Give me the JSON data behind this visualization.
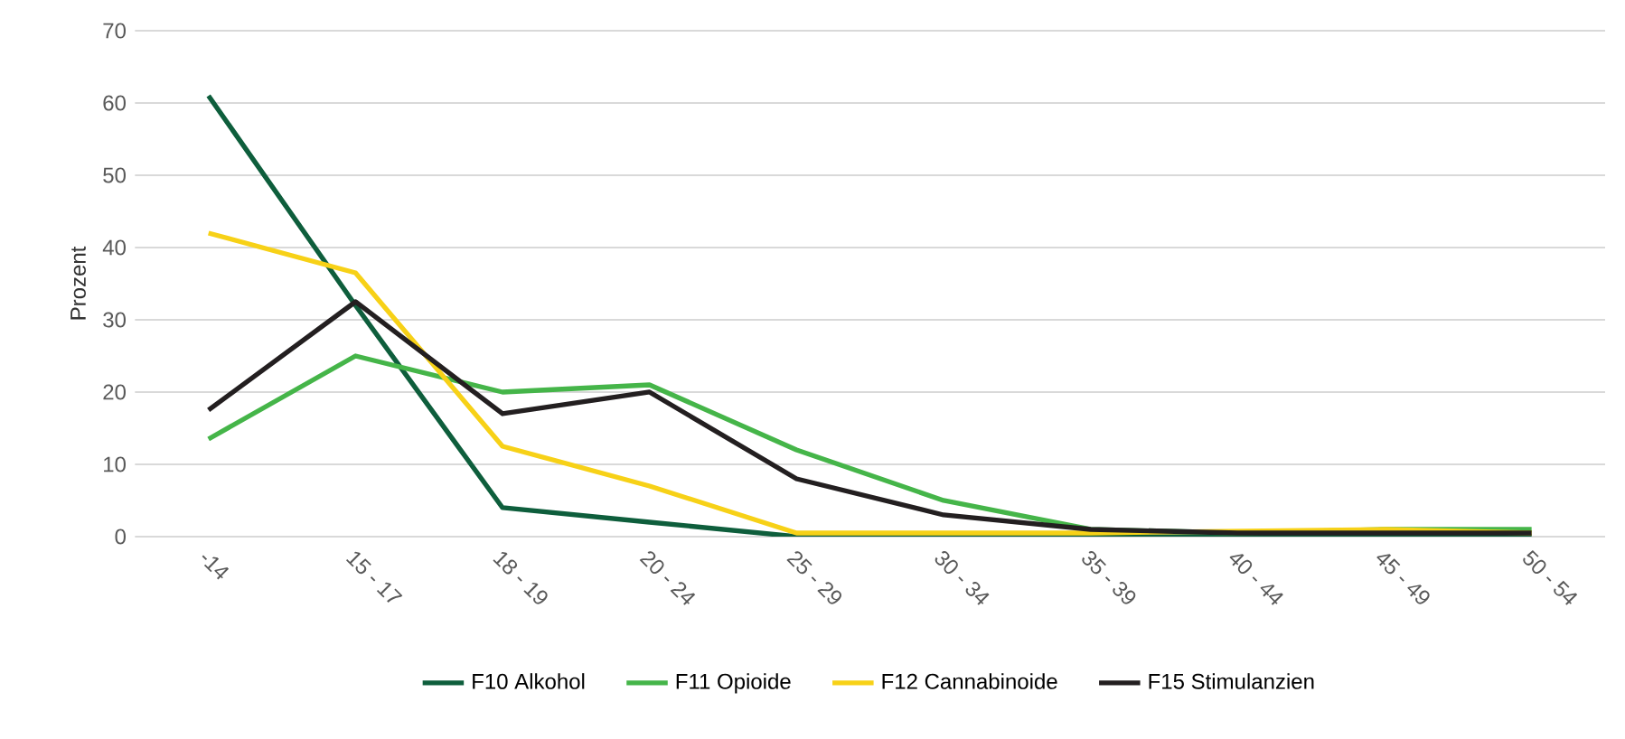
{
  "chart_data": {
    "type": "line",
    "ylabel": "Prozent",
    "categories": [
      "-14",
      "15 - 17",
      "18 - 19",
      "20 - 24",
      "25 - 29",
      "30 - 34",
      "35 - 39",
      "40 - 44",
      "45 - 49",
      "50 - 54"
    ],
    "series": [
      {
        "name": "F10  Alkohol",
        "color": "#0e5e3c",
        "values": [
          61,
          32,
          4,
          2,
          0,
          0,
          0,
          0,
          0,
          0
        ]
      },
      {
        "name": "F11  Opioide",
        "color": "#45b549",
        "values": [
          13.5,
          25,
          20,
          21,
          12,
          5,
          1,
          0.5,
          1,
          1
        ]
      },
      {
        "name": "F12  Cannabinoide",
        "color": "#f7d117",
        "values": [
          42,
          36.5,
          12.5,
          7,
          0.5,
          0.5,
          0.5,
          null,
          1,
          0.5
        ]
      },
      {
        "name": "F15  Stimulanzien",
        "color": "#231f20",
        "values": [
          17.5,
          32.5,
          17,
          20,
          8,
          3,
          1,
          0.5,
          0.5,
          0.5
        ]
      }
    ],
    "ylim": [
      0,
      70
    ],
    "yticks": [
      0,
      10,
      20,
      30,
      40,
      50,
      60,
      70
    ],
    "grid": "y",
    "legend": "bottom",
    "marker": "none",
    "line_style": "solid"
  }
}
